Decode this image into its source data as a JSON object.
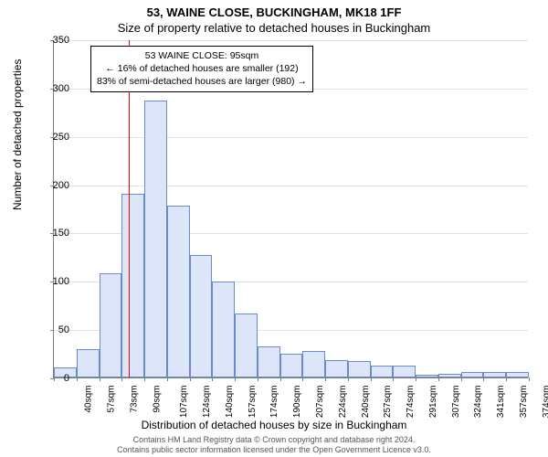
{
  "title_main": "53, WAINE CLOSE, BUCKINGHAM, MK18 1FF",
  "title_sub": "Size of property relative to detached houses in Buckingham",
  "y_axis_label": "Number of detached properties",
  "x_axis_label": "Distribution of detached houses by size in Buckingham",
  "footer_line1": "Contains HM Land Registry data © Crown copyright and database right 2024.",
  "footer_line2": "Contains public sector information licensed under the Open Government Licence v3.0.",
  "annotation": {
    "line1": "53 WAINE CLOSE: 95sqm",
    "line2": "← 16% of detached houses are smaller (192)",
    "line3": "83% of semi-detached houses are larger (980) →"
  },
  "marker_value_sqm": 95,
  "chart": {
    "type": "histogram",
    "ylim": [
      0,
      350
    ],
    "ytick_step": 50,
    "x_start": 40,
    "x_bin_width_sqm": 16.6,
    "x_labels": [
      "40sqm",
      "57sqm",
      "73sqm",
      "90sqm",
      "107sqm",
      "124sqm",
      "140sqm",
      "157sqm",
      "174sqm",
      "190sqm",
      "207sqm",
      "224sqm",
      "240sqm",
      "257sqm",
      "274sqm",
      "291sqm",
      "307sqm",
      "324sqm",
      "341sqm",
      "357sqm",
      "374sqm"
    ],
    "values": [
      10,
      29,
      108,
      190,
      287,
      178,
      127,
      99,
      66,
      32,
      25,
      27,
      18,
      17,
      12,
      12,
      3,
      4,
      6,
      6,
      6
    ],
    "bar_fill": "#dce6f8",
    "bar_border": "#6a8bc9",
    "grid_color": "#e0e0e0",
    "axis_color": "#808080",
    "marker_color": "#ff0000",
    "background_color": "#ffffff",
    "label_fontsize": 12,
    "tick_fontsize": 11,
    "x_tick_fontsize": 10
  }
}
